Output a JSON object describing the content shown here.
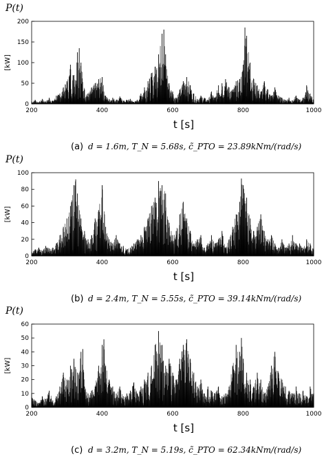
{
  "figure": {
    "charts": [
      {
        "type": "area",
        "ptitle": "P(t)",
        "ylabel": "[kW]",
        "xlabel": "t [s]",
        "xlim": [
          200,
          1000
        ],
        "ylim": [
          0,
          200
        ],
        "xticks": [
          "200",
          "400",
          "600",
          "800",
          "1000"
        ],
        "yticks": [
          "0",
          "50",
          "100",
          "150",
          "200"
        ],
        "caption_letter": "(a)",
        "caption_formula": "d = 1.6m, T_N = 5.68s, c̃_PTO = 23.89kNm/(rad/s)",
        "color": "#000000"
      },
      {
        "type": "area",
        "ptitle": "P(t)",
        "ylabel": "[kW]",
        "xlabel": "t [s]",
        "xlim": [
          200,
          1000
        ],
        "ylim": [
          0,
          100
        ],
        "xticks": [
          "200",
          "400",
          "600",
          "800",
          "1000"
        ],
        "yticks": [
          "0",
          "20",
          "40",
          "60",
          "80",
          "100"
        ],
        "caption_letter": "(b)",
        "caption_formula": "d = 2.4m, T_N = 5.55s, c̃_PTO = 39.14kNm/(rad/s)",
        "color": "#000000"
      },
      {
        "type": "area",
        "ptitle": "P(t)",
        "ylabel": "[kW]",
        "xlabel": "t [s]",
        "xlim": [
          200,
          1000
        ],
        "ylim": [
          0,
          60
        ],
        "xticks": [
          "200",
          "400",
          "600",
          "800",
          "1000"
        ],
        "yticks": [
          "0",
          "10",
          "20",
          "30",
          "40",
          "50",
          "60"
        ],
        "caption_letter": "(c)",
        "caption_formula": "d = 3.2m, T_N = 5.19s, c̃_PTO = 62.34kNm/(rad/s)",
        "color": "#000000"
      }
    ]
  },
  "chart_data": [
    {
      "type": "area",
      "title": "P(t)",
      "xlabel": "t [s]",
      "ylabel": "[kW]",
      "xlim": [
        200,
        1000
      ],
      "ylim": [
        0,
        200
      ],
      "grid": false,
      "series": [
        {
          "x": [
            200,
            210,
            220,
            230,
            240,
            250,
            260,
            270,
            280,
            290,
            300,
            310,
            320,
            330,
            335,
            340,
            350,
            360,
            370,
            380,
            390,
            400,
            410,
            420,
            430,
            440,
            450,
            460,
            470,
            480,
            490,
            500,
            510,
            520,
            530,
            540,
            550,
            560,
            570,
            575,
            580,
            590,
            600,
            610,
            620,
            630,
            640,
            650,
            660,
            670,
            680,
            690,
            700,
            710,
            720,
            730,
            740,
            750,
            760,
            770,
            780,
            790,
            800,
            805,
            810,
            820,
            830,
            840,
            850,
            860,
            870,
            880,
            890,
            900,
            910,
            920,
            930,
            940,
            950,
            960,
            970,
            980,
            990,
            1000
          ],
          "values": [
            5,
            10,
            4,
            12,
            6,
            15,
            8,
            20,
            25,
            40,
            55,
            95,
            70,
            125,
            135,
            100,
            35,
            25,
            40,
            50,
            60,
            65,
            20,
            12,
            15,
            10,
            18,
            8,
            10,
            12,
            5,
            10,
            25,
            40,
            55,
            75,
            90,
            120,
            170,
            180,
            120,
            50,
            30,
            15,
            35,
            55,
            65,
            45,
            25,
            12,
            20,
            15,
            10,
            30,
            15,
            45,
            50,
            60,
            40,
            35,
            55,
            60,
            95,
            185,
            165,
            100,
            60,
            45,
            30,
            55,
            35,
            20,
            40,
            20,
            15,
            10,
            15,
            8,
            20,
            10,
            15,
            45,
            25,
            10
          ]
        }
      ]
    },
    {
      "type": "area",
      "title": "P(t)",
      "xlabel": "t [s]",
      "ylabel": "[kW]",
      "xlim": [
        200,
        1000
      ],
      "ylim": [
        0,
        100
      ],
      "grid": false,
      "series": [
        {
          "x": [
            200,
            210,
            220,
            230,
            240,
            250,
            260,
            270,
            280,
            290,
            300,
            310,
            320,
            325,
            330,
            340,
            350,
            360,
            370,
            380,
            390,
            400,
            410,
            420,
            430,
            440,
            450,
            460,
            470,
            480,
            490,
            500,
            510,
            520,
            530,
            540,
            550,
            560,
            570,
            580,
            590,
            600,
            610,
            620,
            630,
            640,
            650,
            660,
            670,
            680,
            690,
            700,
            710,
            720,
            730,
            740,
            750,
            760,
            770,
            780,
            790,
            795,
            800,
            810,
            820,
            830,
            840,
            850,
            860,
            870,
            880,
            890,
            900,
            910,
            920,
            930,
            940,
            950,
            960,
            970,
            980,
            990,
            1000
          ],
          "values": [
            5,
            8,
            10,
            6,
            12,
            9,
            10,
            15,
            25,
            35,
            45,
            60,
            85,
            92,
            75,
            45,
            30,
            20,
            25,
            45,
            55,
            85,
            35,
            20,
            15,
            25,
            15,
            12,
            8,
            10,
            15,
            20,
            25,
            35,
            45,
            60,
            70,
            90,
            85,
            75,
            40,
            25,
            30,
            50,
            65,
            45,
            30,
            15,
            20,
            25,
            10,
            15,
            25,
            15,
            20,
            30,
            10,
            20,
            35,
            50,
            65,
            93,
            85,
            70,
            45,
            30,
            35,
            50,
            30,
            20,
            25,
            15,
            10,
            20,
            10,
            15,
            25,
            15,
            15,
            10,
            20,
            15,
            8
          ]
        }
      ]
    },
    {
      "type": "area",
      "title": "P(t)",
      "xlabel": "t [s]",
      "ylabel": "[kW]",
      "xlim": [
        200,
        1000
      ],
      "ylim": [
        0,
        60
      ],
      "grid": false,
      "series": [
        {
          "x": [
            200,
            210,
            220,
            230,
            240,
            250,
            260,
            270,
            280,
            290,
            300,
            310,
            320,
            330,
            340,
            345,
            350,
            360,
            370,
            380,
            390,
            400,
            405,
            410,
            420,
            430,
            440,
            450,
            460,
            470,
            480,
            490,
            500,
            510,
            520,
            530,
            540,
            550,
            560,
            570,
            580,
            590,
            600,
            610,
            620,
            630,
            640,
            650,
            660,
            670,
            680,
            690,
            700,
            710,
            720,
            730,
            740,
            750,
            760,
            770,
            780,
            790,
            795,
            800,
            810,
            820,
            830,
            840,
            850,
            860,
            870,
            880,
            890,
            900,
            910,
            920,
            930,
            940,
            950,
            960,
            970,
            980,
            990,
            1000
          ],
          "values": [
            10,
            5,
            3,
            8,
            6,
            12,
            5,
            8,
            15,
            25,
            20,
            30,
            35,
            25,
            40,
            42,
            15,
            10,
            12,
            15,
            30,
            45,
            49,
            30,
            20,
            15,
            10,
            15,
            8,
            10,
            12,
            18,
            10,
            15,
            20,
            25,
            30,
            45,
            55,
            45,
            30,
            35,
            25,
            20,
            35,
            45,
            49,
            35,
            25,
            15,
            20,
            10,
            15,
            12,
            10,
            15,
            8,
            10,
            15,
            30,
            45,
            40,
            50,
            35,
            25,
            20,
            15,
            25,
            20,
            10,
            15,
            30,
            40,
            25,
            20,
            15,
            12,
            10,
            15,
            10,
            12,
            8,
            15,
            10
          ]
        }
      ]
    }
  ]
}
